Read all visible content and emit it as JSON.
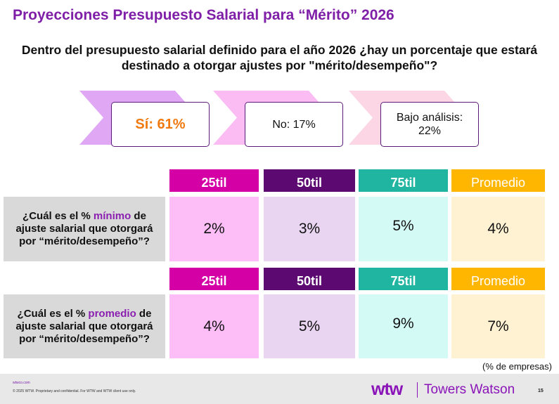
{
  "title": "Proyecciones Presupuesto Salarial para “Mérito” 2026",
  "question": "Dentro del presupuesto salarial definido para el año 2026 ¿hay un porcentaje que estará destinado a otorgar ajustes por \"mérito/desempeño\"?",
  "answers": [
    {
      "label": "Sí: 61%",
      "color": "#f07a10"
    },
    {
      "label": "No: 17%"
    },
    {
      "line1": "Bajo análisis:",
      "line2": "22%"
    }
  ],
  "columns": [
    "25til",
    "50til",
    "75til",
    "Promedio"
  ],
  "colors": {
    "header": [
      "#d400a6",
      "#5c0a72",
      "#1fb5a0",
      "#ffb600"
    ],
    "cells": [
      "#fdbdf6",
      "#e9d5f2",
      "#d4faf6",
      "#fff2d2"
    ],
    "title": "#7f1fa8"
  },
  "rows": [
    {
      "q_pre": "¿Cuál es el % ",
      "q_hl": "mínimo",
      "q_post": " de ajuste salarial que otorgará por “mérito/desempeño”?",
      "values": [
        "2%",
        "3%",
        "5%",
        "4%"
      ]
    },
    {
      "q_pre": "¿Cuál es el % ",
      "q_hl": "promedio",
      "q_post": " de ajuste salarial que otorgará por “mérito/desempeño”?",
      "values": [
        "4%",
        "5%",
        "9%",
        "7%"
      ]
    }
  ],
  "note": "(% de empresas)",
  "footer": {
    "url": "wtwco.com",
    "legal": "© 2025 WTW. Proprietary and confidential. For WTW and WTW client use only.",
    "brand_mark": "wtw",
    "brand_name": "Towers Watson",
    "page": "15"
  }
}
